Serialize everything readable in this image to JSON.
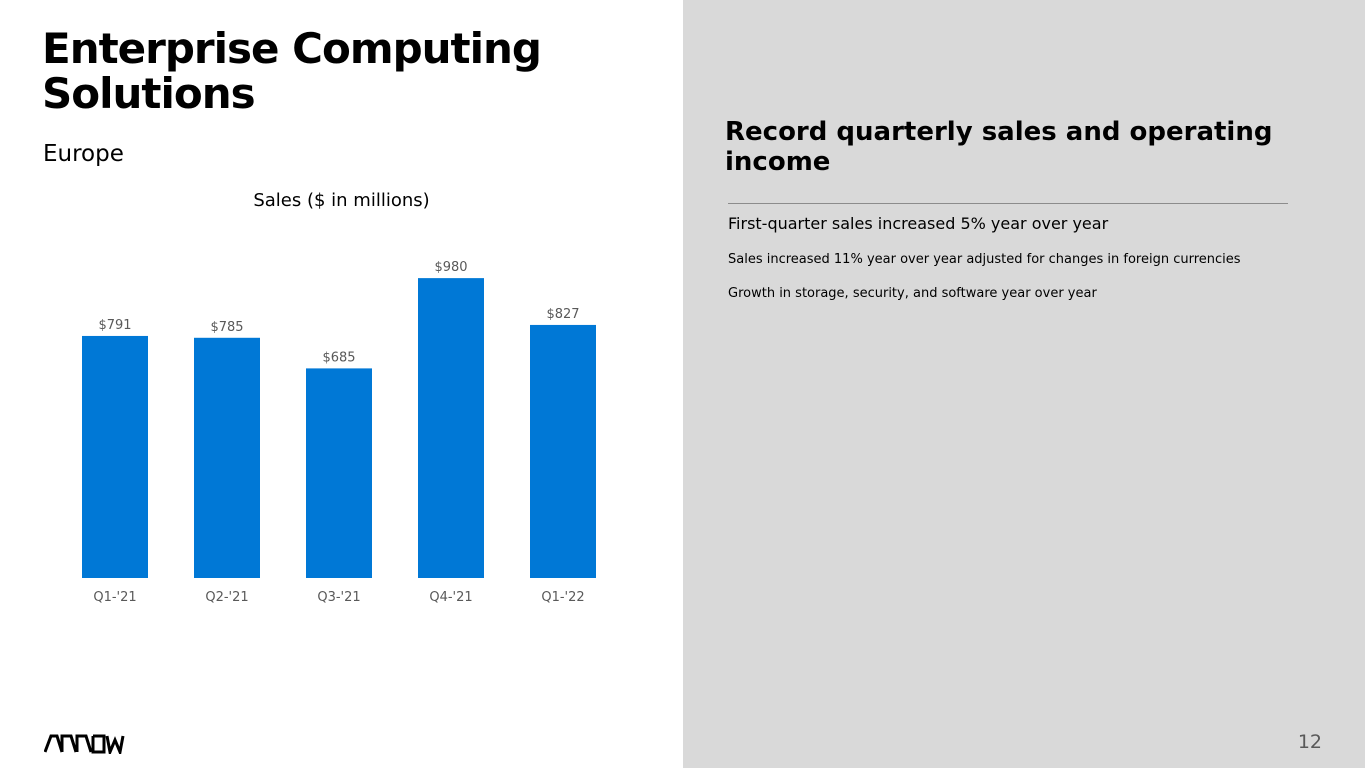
{
  "slide": {
    "title": "Enterprise Computing Solutions",
    "subtitle": "Europe",
    "page_number": "12",
    "logo_text": "ARROW"
  },
  "colors": {
    "bar": "#0078d6",
    "right_panel": "#d9d9d9",
    "axis_label": "#595959"
  },
  "chart_data": {
    "type": "bar",
    "title": "Sales ($ in millions)",
    "xlabel": "",
    "ylabel": "",
    "categories": [
      "Q1-'21",
      "Q2-'21",
      "Q3-'21",
      "Q4-'21",
      "Q1-'22"
    ],
    "values": [
      791,
      785,
      685,
      980,
      827
    ],
    "data_labels": [
      "$791",
      "$785",
      "$685",
      "$980",
      "$827"
    ],
    "ylim": [
      0,
      1000
    ],
    "grid": false,
    "legend": "none"
  },
  "highlights": {
    "headline": "Record quarterly sales and operating income",
    "main_point": "First-quarter sales increased 5% year over year",
    "sub_points": [
      "Sales increased 11% year over year adjusted for changes in foreign currencies",
      "Growth in storage, security, and software year over year"
    ]
  }
}
